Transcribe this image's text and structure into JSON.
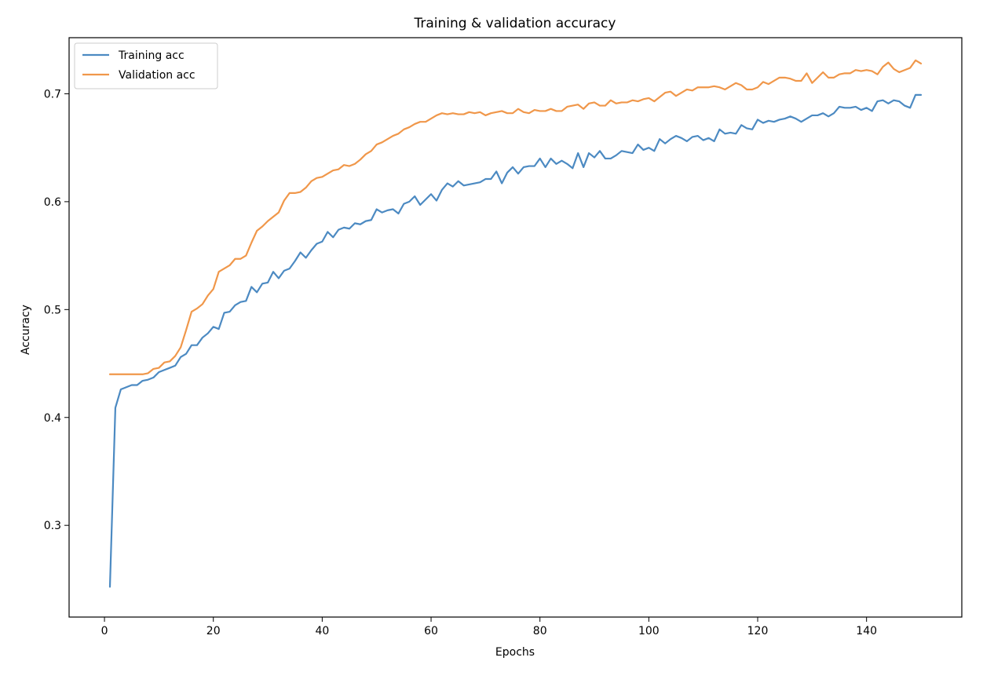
{
  "chart_data": {
    "type": "line",
    "title": "Training & validation accuracy",
    "xlabel": "Epochs",
    "ylabel": "Accuracy",
    "xlim": [
      -6.5,
      157.5
    ],
    "ylim": [
      0.215,
      0.752
    ],
    "xticks": [
      0,
      20,
      40,
      60,
      80,
      100,
      120,
      140
    ],
    "yticks": [
      0.3,
      0.4,
      0.5,
      0.6,
      0.7
    ],
    "grid": false,
    "legend_position": "top-left",
    "series": [
      {
        "name": "Training acc",
        "color": "#4c8ac2",
        "x": [
          1,
          2,
          3,
          4,
          5,
          6,
          7,
          8,
          9,
          10,
          11,
          12,
          13,
          14,
          15,
          16,
          17,
          18,
          19,
          20,
          21,
          22,
          23,
          24,
          25,
          26,
          27,
          28,
          29,
          30,
          31,
          32,
          33,
          34,
          35,
          36,
          37,
          38,
          39,
          40,
          41,
          42,
          43,
          44,
          45,
          46,
          47,
          48,
          49,
          50,
          51,
          52,
          53,
          54,
          55,
          56,
          57,
          58,
          59,
          60,
          61,
          62,
          63,
          64,
          65,
          66,
          67,
          68,
          69,
          70,
          71,
          72,
          73,
          74,
          75,
          76,
          77,
          78,
          79,
          80,
          81,
          82,
          83,
          84,
          85,
          86,
          87,
          88,
          89,
          90,
          91,
          92,
          93,
          94,
          95,
          96,
          97,
          98,
          99,
          100,
          101,
          102,
          103,
          104,
          105,
          106,
          107,
          108,
          109,
          110,
          111,
          112,
          113,
          114,
          115,
          116,
          117,
          118,
          119,
          120,
          121,
          122,
          123,
          124,
          125,
          126,
          127,
          128,
          129,
          130,
          131,
          132,
          133,
          134,
          135,
          136,
          137,
          138,
          139,
          140,
          141,
          142,
          143,
          144,
          145,
          146,
          147,
          148,
          149,
          150
        ],
        "values": [
          0.243,
          0.409,
          0.426,
          0.428,
          0.43,
          0.43,
          0.434,
          0.435,
          0.437,
          0.442,
          0.444,
          0.446,
          0.448,
          0.456,
          0.459,
          0.467,
          0.467,
          0.474,
          0.478,
          0.484,
          0.482,
          0.497,
          0.498,
          0.504,
          0.507,
          0.508,
          0.521,
          0.516,
          0.524,
          0.525,
          0.535,
          0.529,
          0.536,
          0.538,
          0.545,
          0.553,
          0.548,
          0.555,
          0.561,
          0.563,
          0.572,
          0.567,
          0.574,
          0.576,
          0.575,
          0.58,
          0.579,
          0.582,
          0.583,
          0.593,
          0.59,
          0.592,
          0.593,
          0.589,
          0.598,
          0.6,
          0.605,
          0.597,
          0.602,
          0.607,
          0.601,
          0.611,
          0.617,
          0.614,
          0.619,
          0.615,
          0.616,
          0.617,
          0.618,
          0.621,
          0.621,
          0.628,
          0.617,
          0.627,
          0.632,
          0.626,
          0.632,
          0.633,
          0.633,
          0.64,
          0.632,
          0.64,
          0.635,
          0.638,
          0.635,
          0.631,
          0.645,
          0.632,
          0.645,
          0.641,
          0.647,
          0.64,
          0.64,
          0.643,
          0.647,
          0.646,
          0.645,
          0.653,
          0.648,
          0.65,
          0.647,
          0.658,
          0.654,
          0.658,
          0.661,
          0.659,
          0.656,
          0.66,
          0.661,
          0.657,
          0.659,
          0.656,
          0.667,
          0.663,
          0.664,
          0.663,
          0.671,
          0.668,
          0.667,
          0.676,
          0.673,
          0.675,
          0.674,
          0.676,
          0.677,
          0.679,
          0.677,
          0.674,
          0.677,
          0.68,
          0.68,
          0.682,
          0.679,
          0.682,
          0.688,
          0.687,
          0.687,
          0.688,
          0.685,
          0.687,
          0.684,
          0.693,
          0.694,
          0.691,
          0.694,
          0.693,
          0.689,
          0.687,
          0.699,
          0.699
        ]
      },
      {
        "name": "Validation acc",
        "color": "#f0974a",
        "x": [
          1,
          2,
          3,
          4,
          5,
          6,
          7,
          8,
          9,
          10,
          11,
          12,
          13,
          14,
          15,
          16,
          17,
          18,
          19,
          20,
          21,
          22,
          23,
          24,
          25,
          26,
          27,
          28,
          29,
          30,
          31,
          32,
          33,
          34,
          35,
          36,
          37,
          38,
          39,
          40,
          41,
          42,
          43,
          44,
          45,
          46,
          47,
          48,
          49,
          50,
          51,
          52,
          53,
          54,
          55,
          56,
          57,
          58,
          59,
          60,
          61,
          62,
          63,
          64,
          65,
          66,
          67,
          68,
          69,
          70,
          71,
          72,
          73,
          74,
          75,
          76,
          77,
          78,
          79,
          80,
          81,
          82,
          83,
          84,
          85,
          86,
          87,
          88,
          89,
          90,
          91,
          92,
          93,
          94,
          95,
          96,
          97,
          98,
          99,
          100,
          101,
          102,
          103,
          104,
          105,
          106,
          107,
          108,
          109,
          110,
          111,
          112,
          113,
          114,
          115,
          116,
          117,
          118,
          119,
          120,
          121,
          122,
          123,
          124,
          125,
          126,
          127,
          128,
          129,
          130,
          131,
          132,
          133,
          134,
          135,
          136,
          137,
          138,
          139,
          140,
          141,
          142,
          143,
          144,
          145,
          146,
          147,
          148,
          149,
          150
        ],
        "values": [
          0.44,
          0.44,
          0.44,
          0.44,
          0.44,
          0.44,
          0.44,
          0.441,
          0.445,
          0.446,
          0.451,
          0.452,
          0.457,
          0.465,
          0.481,
          0.498,
          0.501,
          0.505,
          0.513,
          0.519,
          0.535,
          0.538,
          0.541,
          0.547,
          0.547,
          0.55,
          0.562,
          0.573,
          0.577,
          0.582,
          0.586,
          0.59,
          0.601,
          0.608,
          0.608,
          0.609,
          0.613,
          0.619,
          0.622,
          0.623,
          0.626,
          0.629,
          0.63,
          0.634,
          0.633,
          0.635,
          0.639,
          0.644,
          0.647,
          0.653,
          0.655,
          0.658,
          0.661,
          0.663,
          0.667,
          0.669,
          0.672,
          0.674,
          0.674,
          0.677,
          0.68,
          0.682,
          0.681,
          0.682,
          0.681,
          0.681,
          0.683,
          0.682,
          0.683,
          0.68,
          0.682,
          0.683,
          0.684,
          0.682,
          0.682,
          0.686,
          0.683,
          0.682,
          0.685,
          0.684,
          0.684,
          0.686,
          0.684,
          0.684,
          0.688,
          0.689,
          0.69,
          0.686,
          0.691,
          0.692,
          0.689,
          0.689,
          0.694,
          0.691,
          0.692,
          0.692,
          0.694,
          0.693,
          0.695,
          0.696,
          0.693,
          0.697,
          0.701,
          0.702,
          0.698,
          0.701,
          0.704,
          0.703,
          0.706,
          0.706,
          0.706,
          0.707,
          0.706,
          0.704,
          0.707,
          0.71,
          0.708,
          0.704,
          0.704,
          0.706,
          0.711,
          0.709,
          0.712,
          0.715,
          0.715,
          0.714,
          0.712,
          0.712,
          0.719,
          0.71,
          0.715,
          0.72,
          0.715,
          0.715,
          0.718,
          0.719,
          0.719,
          0.722,
          0.721,
          0.722,
          0.721,
          0.718,
          0.725,
          0.729,
          0.723,
          0.72,
          0.722,
          0.724,
          0.731,
          0.728
        ]
      }
    ]
  }
}
